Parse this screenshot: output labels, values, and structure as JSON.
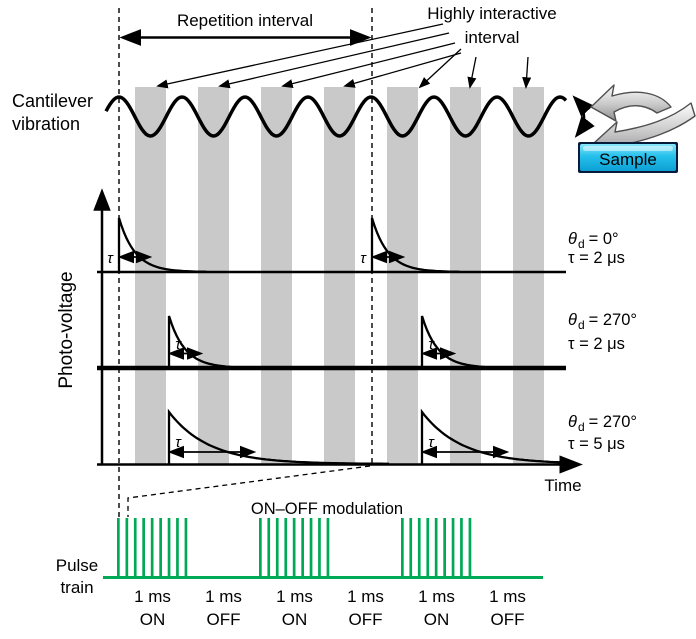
{
  "top": {
    "repetition_interval_label": "Repetition interval",
    "highly_interactive_line1": "Highly interactive",
    "highly_interactive_line2": "interval",
    "cantilever_line1": "Cantilever",
    "cantilever_line2": "vibration",
    "sample_label": "Sample"
  },
  "axes": {
    "y_label": "Photo-voltage",
    "x_label": "Time"
  },
  "rows": [
    {
      "theta_symbol": "θ",
      "theta_sub": "d",
      "theta_eq": "= 0°",
      "tau_value": "τ = 2 μs",
      "tau_symbol": "τ"
    },
    {
      "theta_symbol": "θ",
      "theta_sub": "d",
      "theta_eq": "= 270°",
      "tau_value": "τ = 2 μs",
      "tau_symbol": "τ"
    },
    {
      "theta_symbol": "θ",
      "theta_sub": "d",
      "theta_eq": "= 270°",
      "tau_value": "τ = 5 μs",
      "tau_symbol": "τ"
    }
  ],
  "pulse_train": {
    "label_line1": "Pulse",
    "label_line2": "train",
    "modulation_label": "ON–OFF modulation",
    "groups": 3,
    "pulses_per_group": 9,
    "window_labels": [
      {
        "duration": "1 ms",
        "state": "ON"
      },
      {
        "duration": "1 ms",
        "state": "OFF"
      },
      {
        "duration": "1 ms",
        "state": "ON"
      },
      {
        "duration": "1 ms",
        "state": "OFF"
      },
      {
        "duration": "1 ms",
        "state": "ON"
      },
      {
        "duration": "1 ms",
        "state": "OFF"
      }
    ]
  },
  "bars_count": 7,
  "colors": {
    "interval_bar": "#c9c9c9",
    "pulse_green": "#00a956",
    "sample_fill_top": "#8ae6fa",
    "sample_fill_mid": "#25c0ec",
    "sample_fill_bottom": "#0d9fd4",
    "sample_border": "#061a3a",
    "line_black": "#000000"
  }
}
